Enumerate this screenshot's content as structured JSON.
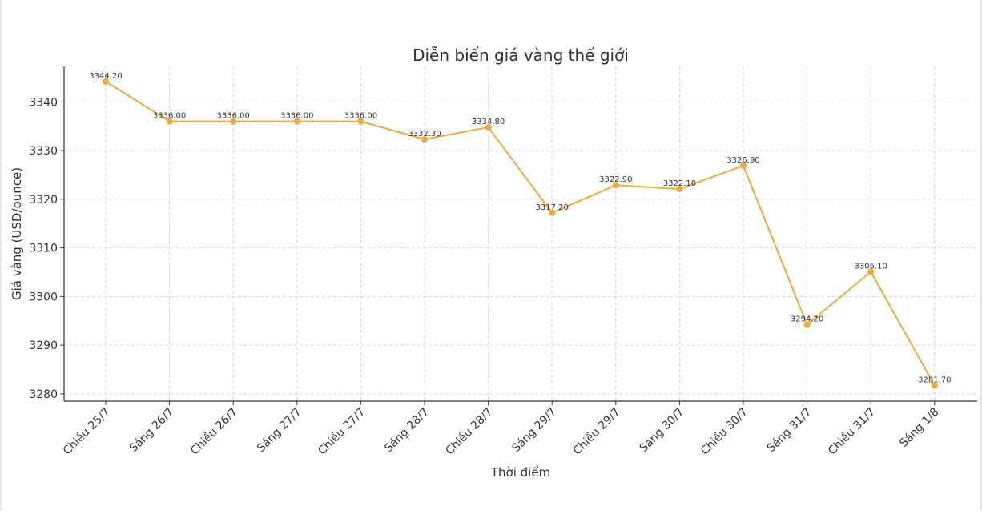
{
  "chart_data": {
    "type": "line",
    "title": "Diễn biến giá vàng thế giới",
    "xlabel": "Thời điểm",
    "ylabel": "Giá vàng (USD/ounce)",
    "categories": [
      "Chiều 25/7",
      "Sáng 26/7",
      "Chiều 26/7",
      "Sáng 27/7",
      "Chiều 27/7",
      "Sáng 28/7",
      "Chiều 28/7",
      "Sáng 29/7",
      "Chiều 29/7",
      "Sáng 30/7",
      "Chiều 30/7",
      "Sáng 31/7",
      "Chiều 31/7",
      "Sáng 1/8"
    ],
    "values": [
      3344.2,
      3336.0,
      3336.0,
      3336.0,
      3336.0,
      3332.3,
      3334.8,
      3317.2,
      3322.9,
      3322.1,
      3326.9,
      3294.2,
      3305.1,
      3281.7
    ],
    "value_labels": [
      "3344.20",
      "3336.00",
      "3336.00",
      "3336.00",
      "3336.00",
      "3332.30",
      "3334.80",
      "3317.20",
      "3322.90",
      "3322.10",
      "3326.90",
      "3294.20",
      "3305.10",
      "3281.70"
    ],
    "yticks": [
      3280,
      3290,
      3300,
      3310,
      3320,
      3330,
      3340
    ],
    "ylim": [
      3278.5,
      3347.3
    ],
    "grid": true,
    "color": "#f0a93b"
  }
}
